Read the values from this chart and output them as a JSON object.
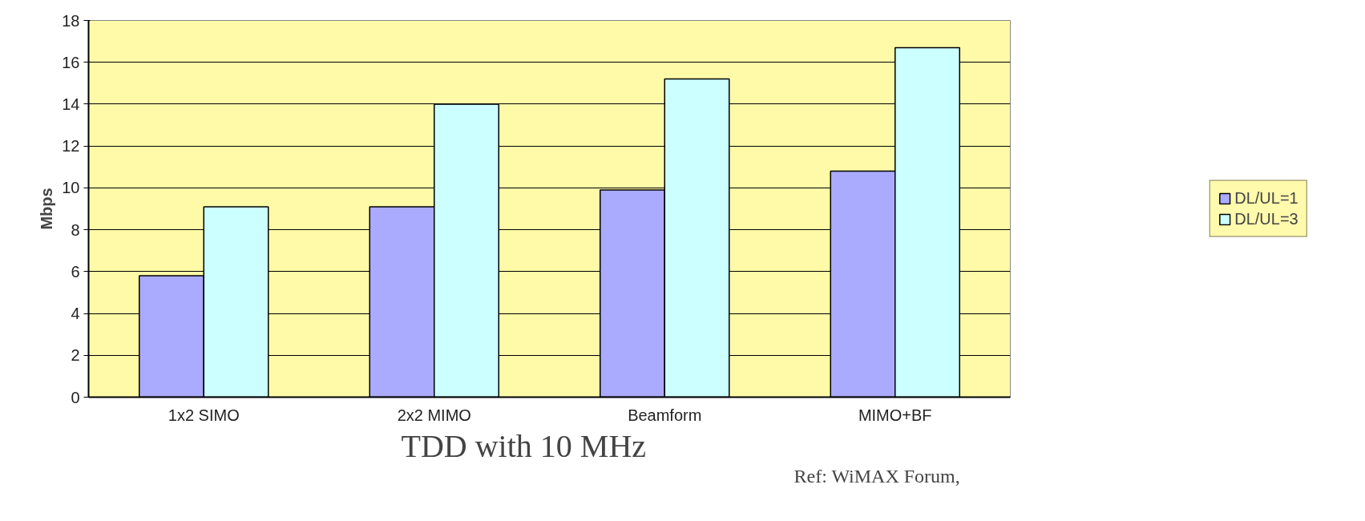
{
  "chart_data": {
    "type": "bar",
    "title": "TDD with 10 MHz",
    "ylabel": "Mbps",
    "categories": [
      "1x2 SIMO",
      "2x2 MIMO",
      "Beamform",
      "MIMO+BF"
    ],
    "series": [
      {
        "name": "DL/UL=1",
        "color": "#aaaaff",
        "values": [
          5.8,
          9.1,
          9.9,
          10.8
        ]
      },
      {
        "name": "DL/UL=3",
        "color": "#ccffff",
        "values": [
          9.1,
          14.0,
          15.2,
          16.7
        ]
      }
    ],
    "ylim": [
      0,
      18
    ],
    "yticks": [
      0,
      2,
      4,
      6,
      8,
      10,
      12,
      14,
      16,
      18
    ],
    "grid": "y",
    "legend": "right",
    "annotations": [
      "Ref: WiMAX Forum,"
    ]
  }
}
